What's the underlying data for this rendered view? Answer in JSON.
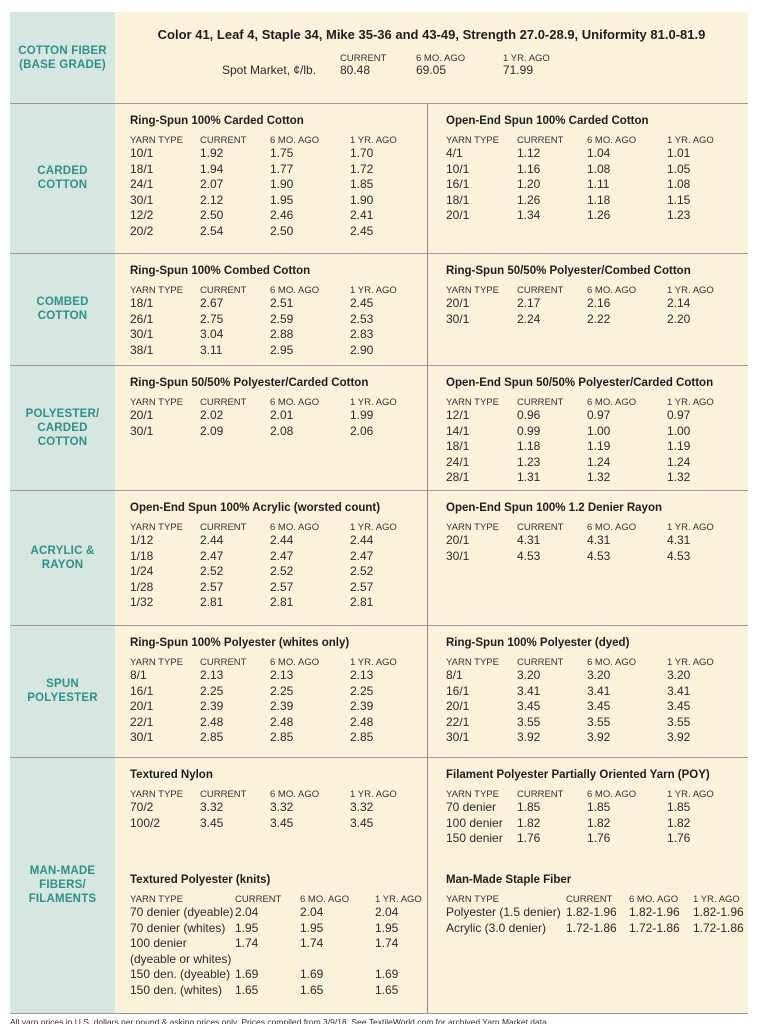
{
  "header": {
    "title": "Color 41, Leaf 4, Staple 34, Mike 35-36 and 43-49, Strength 27.0-28.9, Uniformity 81.0-81.9",
    "label": "COTTON FIBER\n(BASE GRADE)",
    "spot_label": "Spot Market, ¢/lb.",
    "columns": [
      "CURRENT",
      "6 MO. AGO",
      "1 YR. AGO"
    ],
    "values": [
      "80.48",
      "69.05",
      "71.99"
    ]
  },
  "sections": [
    {
      "label": "CARDED\nCOTTON",
      "panels": [
        {
          "title": "Ring-Spun 100% Carded Cotton",
          "columns": [
            "YARN TYPE",
            "CURRENT",
            "6 MO. AGO",
            "1 YR. AGO"
          ],
          "rows": [
            [
              "10/1",
              "1.92",
              "1.75",
              "1.70"
            ],
            [
              "18/1",
              "1.94",
              "1.77",
              "1.72"
            ],
            [
              "24/1",
              "2.07",
              "1.90",
              "1.85"
            ],
            [
              "30/1",
              "2.12",
              "1.95",
              "1.90"
            ],
            [
              "12/2",
              "2.50",
              "2.46",
              "2.41"
            ],
            [
              "20/2",
              "2.54",
              "2.50",
              "2.45"
            ]
          ]
        },
        {
          "title": "Open-End Spun 100% Carded Cotton",
          "columns": [
            "YARN TYPE",
            "CURRENT",
            "6 MO. AGO",
            "1 YR. AGO"
          ],
          "rows": [
            [
              "4/1",
              "1.12",
              "1.04",
              "1.01"
            ],
            [
              "10/1",
              "1.16",
              "1.08",
              "1.05"
            ],
            [
              "16/1",
              "1.20",
              "1.11",
              "1.08"
            ],
            [
              "18/1",
              "1.26",
              "1.18",
              "1.15"
            ],
            [
              "20/1",
              "1.34",
              "1.26",
              "1.23"
            ]
          ]
        }
      ]
    },
    {
      "label": "COMBED\nCOTTON",
      "panels": [
        {
          "title": "Ring-Spun 100% Combed Cotton",
          "columns": [
            "YARN TYPE",
            "CURRENT",
            "6 MO. AGO",
            "1 YR. AGO"
          ],
          "rows": [
            [
              "18/1",
              "2.67",
              "2.51",
              "2.45"
            ],
            [
              "26/1",
              "2.75",
              "2.59",
              "2.53"
            ],
            [
              "30/1",
              "3.04",
              "2.88",
              "2.83"
            ],
            [
              "38/1",
              "3.11",
              "2.95",
              "2.90"
            ]
          ]
        },
        {
          "title": "Ring-Spun 50/50% Polyester/Combed Cotton",
          "columns": [
            "YARN TYPE",
            "CURRENT",
            "6 MO. AGO",
            "1 YR. AGO"
          ],
          "rows": [
            [
              "20/1",
              "2.17",
              "2.16",
              "2.14"
            ],
            [
              "30/1",
              "2.24",
              "2.22",
              "2.20"
            ]
          ]
        }
      ]
    },
    {
      "label": "POLYESTER/\nCARDED\nCOTTON",
      "panels": [
        {
          "title": "Ring-Spun 50/50% Polyester/Carded Cotton",
          "columns": [
            "YARN TYPE",
            "CURRENT",
            "6 MO. AGO",
            "1 YR. AGO"
          ],
          "rows": [
            [
              "20/1",
              "2.02",
              "2.01",
              "1.99"
            ],
            [
              "30/1",
              "2.09",
              "2.08",
              "2.06"
            ]
          ]
        },
        {
          "title": "Open-End Spun 50/50% Polyester/Carded Cotton",
          "columns": [
            "YARN TYPE",
            "CURRENT",
            "6 MO. AGO",
            "1 YR. AGO"
          ],
          "rows": [
            [
              "12/1",
              "0.96",
              "0.97",
              "0.97"
            ],
            [
              "14/1",
              "0.99",
              "1.00",
              "1.00"
            ],
            [
              "18/1",
              "1.18",
              "1.19",
              "1.19"
            ],
            [
              "24/1",
              "1.23",
              "1.24",
              "1.24"
            ],
            [
              "28/1",
              "1.31",
              "1.32",
              "1.32"
            ]
          ]
        }
      ]
    },
    {
      "label": "ACRYLIC &\nRAYON",
      "panels": [
        {
          "title": "Open-End Spun 100% Acrylic (worsted count)",
          "columns": [
            "YARN TYPE",
            "CURRENT",
            "6 MO. AGO",
            "1 YR. AGO"
          ],
          "rows": [
            [
              "1/12",
              "2.44",
              "2.44",
              "2.44"
            ],
            [
              "1/18",
              "2.47",
              "2.47",
              "2.47"
            ],
            [
              "1/24",
              "2.52",
              "2.52",
              "2.52"
            ],
            [
              "1/28",
              "2.57",
              "2.57",
              "2.57"
            ],
            [
              "1/32",
              "2.81",
              "2.81",
              "2.81"
            ]
          ]
        },
        {
          "title": "Open-End Spun 100% 1.2 Denier Rayon",
          "columns": [
            "YARN TYPE",
            "CURRENT",
            "6 MO. AGO",
            "1 YR. AGO"
          ],
          "rows": [
            [
              "20/1",
              "4.31",
              "4.31",
              "4.31"
            ],
            [
              "30/1",
              "4.53",
              "4.53",
              "4.53"
            ]
          ]
        }
      ]
    },
    {
      "label": "SPUN\nPOLYESTER",
      "panels": [
        {
          "title": "Ring-Spun 100% Polyester (whites only)",
          "columns": [
            "YARN TYPE",
            "CURRENT",
            "6 MO. AGO",
            "1 YR. AGO"
          ],
          "rows": [
            [
              "8/1",
              "2.13",
              "2.13",
              "2.13"
            ],
            [
              "16/1",
              "2.25",
              "2.25",
              "2.25"
            ],
            [
              "20/1",
              "2.39",
              "2.39",
              "2.39"
            ],
            [
              "22/1",
              "2.48",
              "2.48",
              "2.48"
            ],
            [
              "30/1",
              "2.85",
              "2.85",
              "2.85"
            ]
          ]
        },
        {
          "title": "Ring-Spun 100% Polyester (dyed)",
          "columns": [
            "YARN TYPE",
            "CURRENT",
            "6 MO. AGO",
            "1 YR. AGO"
          ],
          "rows": [
            [
              "8/1",
              "3.20",
              "3.20",
              "3.20"
            ],
            [
              "16/1",
              "3.41",
              "3.41",
              "3.41"
            ],
            [
              "20/1",
              "3.45",
              "3.45",
              "3.45"
            ],
            [
              "22/1",
              "3.55",
              "3.55",
              "3.55"
            ],
            [
              "30/1",
              "3.92",
              "3.92",
              "3.92"
            ]
          ]
        }
      ]
    },
    {
      "label": "MAN-MADE\nFIBERS/\nFILAMENTS",
      "panels": [
        {
          "title": "Textured Nylon",
          "columns": [
            "YARN TYPE",
            "CURRENT",
            "6 MO. AGO",
            "1 YR. AGO"
          ],
          "rows": [
            [
              "70/2",
              "3.32",
              "3.32",
              "3.32"
            ],
            [
              "100/2",
              "3.45",
              "3.45",
              "3.45"
            ]
          ]
        },
        {
          "title": "Filament Polyester Partially Oriented Yarn (POY)",
          "columns": [
            "YARN TYPE",
            "CURRENT",
            "6 MO. AGO",
            "1 YR. AGO"
          ],
          "rows": [
            [
              "70 denier",
              "1.85",
              "1.85",
              "1.85"
            ],
            [
              "100 denier",
              "1.82",
              "1.82",
              "1.82"
            ],
            [
              "150 denier",
              "1.76",
              "1.76",
              "1.76"
            ]
          ]
        },
        {
          "title": "Textured Polyester (knits)",
          "columns": [
            "YARN TYPE",
            "CURRENT",
            "6 MO. AGO",
            "1 YR. AGO"
          ],
          "rows": [
            [
              "70 denier (dyeable)",
              "2.04",
              "2.04",
              "2.04"
            ],
            [
              "70 denier (whites)",
              "1.95",
              "1.95",
              "1.95"
            ],
            [
              "100 denier\n(dyeable or whites)",
              "1.74",
              "1.74",
              "1.74"
            ],
            [
              "150 den. (dyeable)",
              "1.69",
              "1.69",
              "1.69"
            ],
            [
              "150 den. (whites)",
              "1.65",
              "1.65",
              "1.65"
            ]
          ]
        },
        {
          "title": "Man-Made Staple Fiber",
          "columns": [
            "YARN TYPE",
            "CURRENT",
            "6 MO. AGO",
            "1 YR. AGO"
          ],
          "rows": [
            [
              "Polyester (1.5 denier)",
              "1.82-1.96",
              "1.82-1.96",
              "1.82-1.96"
            ],
            [
              "Acrylic (3.0 denier)",
              "1.72-1.86",
              "1.72-1.86",
              "1.72-1.86"
            ]
          ]
        }
      ]
    }
  ],
  "footer": "All yarn prices in U.S. dollars per pound & asking prices only. Prices compiled from 3/9/18. See TextileWorld.com for archived Yarn Market data."
}
